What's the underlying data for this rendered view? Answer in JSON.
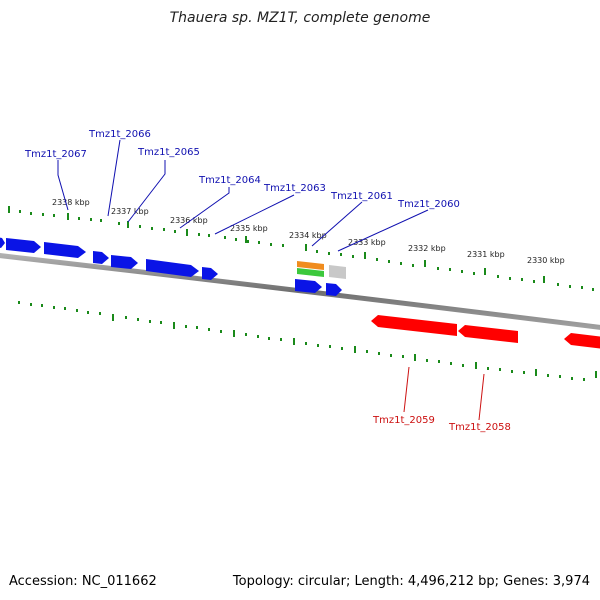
{
  "title": "Thauera sp. MZ1T, complete genome",
  "footer": {
    "accession": "Accession: NC_011662",
    "summary": "Topology: circular; Length: 4,496,212 bp; Genes: 3,974"
  },
  "colors": {
    "forward_gene": "#0a14e6",
    "reverse_gene": "#ff0000",
    "tick": "#1a8a1a",
    "backbone": "#808080",
    "forward_label": "#1010b0",
    "reverse_label": "#cc1010",
    "rrna_orange": "#f08c1e",
    "rrna_green": "#3cc83c",
    "pseudo_gray": "#c8c8c8"
  },
  "kbp_labels": [
    "2338 kbp",
    "2337 kbp",
    "2336 kbp",
    "2335 kbp",
    "2334 kbp",
    "2333 kbp",
    "2332 kbp",
    "2331 kbp",
    "2330 kbp"
  ],
  "gene_labels": {
    "forward": [
      "Tmz1t_2067",
      "Tmz1t_2066",
      "Tmz1t_2065",
      "Tmz1t_2064",
      "Tmz1t_2063",
      "Tmz1t_2061",
      "Tmz1t_2060"
    ],
    "reverse": [
      "Tmz1t_2059",
      "Tmz1t_2058"
    ]
  }
}
